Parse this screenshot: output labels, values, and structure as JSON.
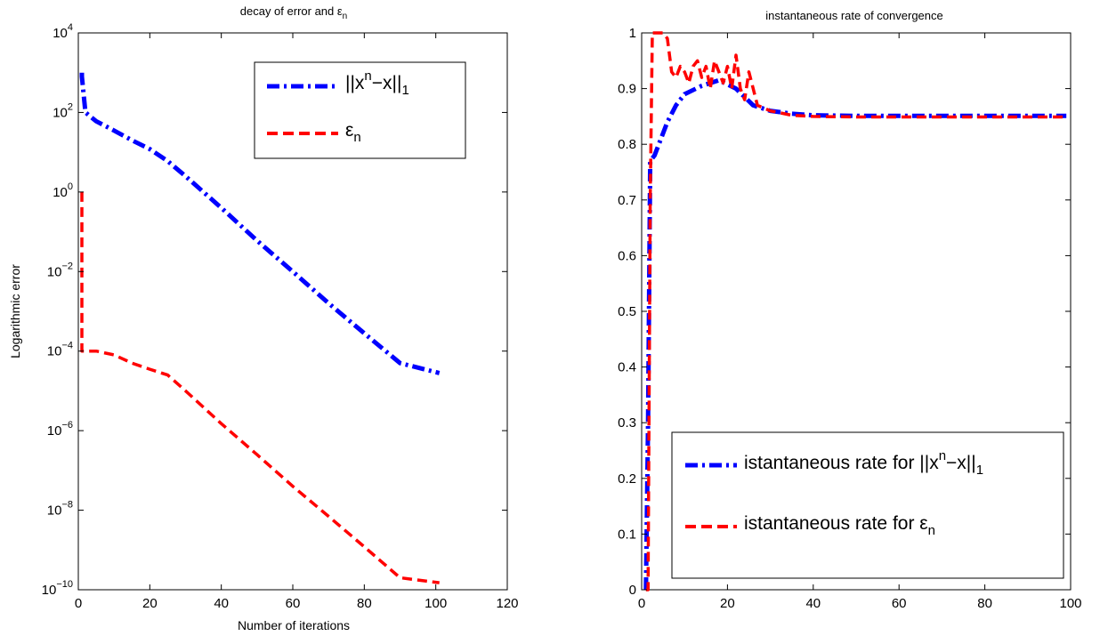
{
  "chart_data": [
    {
      "type": "line",
      "title": "decay of error and ε",
      "title_sub": "n",
      "xlabel": "Number of iterations",
      "ylabel": "Logarithmic error",
      "xlim": [
        0,
        120
      ],
      "ylim": [
        1e-10,
        10000
      ],
      "yscale": "log",
      "xticks": [
        0,
        20,
        40,
        60,
        80,
        100,
        120
      ],
      "yticks": [
        {
          "value": 1e-10,
          "base": "10",
          "exp": "−10"
        },
        {
          "value": 1e-08,
          "base": "10",
          "exp": "−8"
        },
        {
          "value": 1e-06,
          "base": "10",
          "exp": "−6"
        },
        {
          "value": 0.0001,
          "base": "10",
          "exp": "−4"
        },
        {
          "value": 0.01,
          "base": "10",
          "exp": "−2"
        },
        {
          "value": 1,
          "base": "10",
          "exp": "0"
        },
        {
          "value": 100,
          "base": "10",
          "exp": "2"
        },
        {
          "value": 10000,
          "base": "10",
          "exp": "4"
        }
      ],
      "grid": false,
      "legend_position": "top-right",
      "series": [
        {
          "legend": "||xⁿ−x||₁",
          "legend_main": "||x",
          "legend_sup": "n",
          "legend_mid": "−x||",
          "legend_sub": "1",
          "color": "#0000ff",
          "dash": "dash-dot",
          "x": [
            1,
            1,
            2,
            5,
            10,
            15,
            20,
            25,
            30,
            40,
            50,
            60,
            70,
            80,
            90,
            101
          ],
          "y": [
            1000,
            800,
            100,
            60,
            35,
            20,
            12,
            6,
            2.5,
            0.4,
            0.06,
            0.01,
            0.0016,
            0.00028,
            5e-05,
            2.8e-05
          ]
        },
        {
          "legend": "εₙ",
          "legend_main": "ε",
          "legend_sub": "n",
          "color": "#ff0000",
          "dash": "dashed",
          "x": [
            1,
            1,
            2,
            5,
            10,
            15,
            20,
            25,
            30,
            40,
            50,
            60,
            70,
            80,
            90,
            101
          ],
          "y": [
            1,
            0.0001,
            0.0001,
            0.0001,
            8e-05,
            5e-05,
            3.5e-05,
            2.5e-05,
            1e-05,
            1.5e-06,
            2.5e-07,
            4e-08,
            7e-09,
            1.2e-09,
            2e-10,
            1.5e-10
          ]
        }
      ]
    },
    {
      "type": "line",
      "title": "instantaneous rate of convergence",
      "xlabel": "",
      "ylabel": "",
      "xlim": [
        0,
        100
      ],
      "ylim": [
        0,
        1
      ],
      "yscale": "linear",
      "xticks": [
        0,
        20,
        40,
        60,
        80,
        100
      ],
      "yticks": [
        0,
        0.1,
        0.2,
        0.3,
        0.4,
        0.5,
        0.6,
        0.7,
        0.8,
        0.9,
        1
      ],
      "grid": false,
      "legend_position": "bottom-right",
      "series": [
        {
          "legend": "istantaneous rate for ||xⁿ−x||₁",
          "legend_main": "istantaneous rate for ||x",
          "legend_sup": "n",
          "legend_mid": "−x||",
          "legend_sub": "1",
          "color": "#0000ff",
          "dash": "dash-dot",
          "x": [
            1,
            1.5,
            2,
            3,
            4,
            6,
            8,
            10,
            14,
            18,
            22,
            26,
            30,
            35,
            40,
            50,
            60,
            70,
            80,
            90,
            99
          ],
          "y": [
            0.0,
            0.3,
            0.77,
            0.78,
            0.8,
            0.84,
            0.87,
            0.89,
            0.905,
            0.915,
            0.9,
            0.87,
            0.86,
            0.855,
            0.852,
            0.851,
            0.851,
            0.851,
            0.851,
            0.851,
            0.851
          ]
        },
        {
          "legend": "istantaneous rate for εₙ",
          "legend_main": "istantaneous rate for ε",
          "legend_sub": "n",
          "color": "#ff0000",
          "dash": "dashed",
          "x": [
            1,
            1.5,
            2,
            2.5,
            3,
            5,
            6,
            7,
            8,
            9,
            10,
            11,
            12,
            13,
            14,
            15,
            16,
            17,
            18,
            19,
            20,
            21,
            22,
            23,
            24,
            25,
            26,
            27,
            30,
            35,
            40,
            50,
            60,
            70,
            80,
            90,
            99
          ],
          "y": [
            0.0,
            0.0,
            0.7,
            1.0,
            1.0,
            1.0,
            0.99,
            0.93,
            0.92,
            0.94,
            0.93,
            0.91,
            0.94,
            0.95,
            0.92,
            0.94,
            0.9,
            0.95,
            0.93,
            0.91,
            0.94,
            0.9,
            0.96,
            0.9,
            0.88,
            0.93,
            0.9,
            0.87,
            0.86,
            0.852,
            0.85,
            0.849,
            0.849,
            0.849,
            0.849,
            0.849,
            0.849
          ]
        }
      ]
    }
  ]
}
